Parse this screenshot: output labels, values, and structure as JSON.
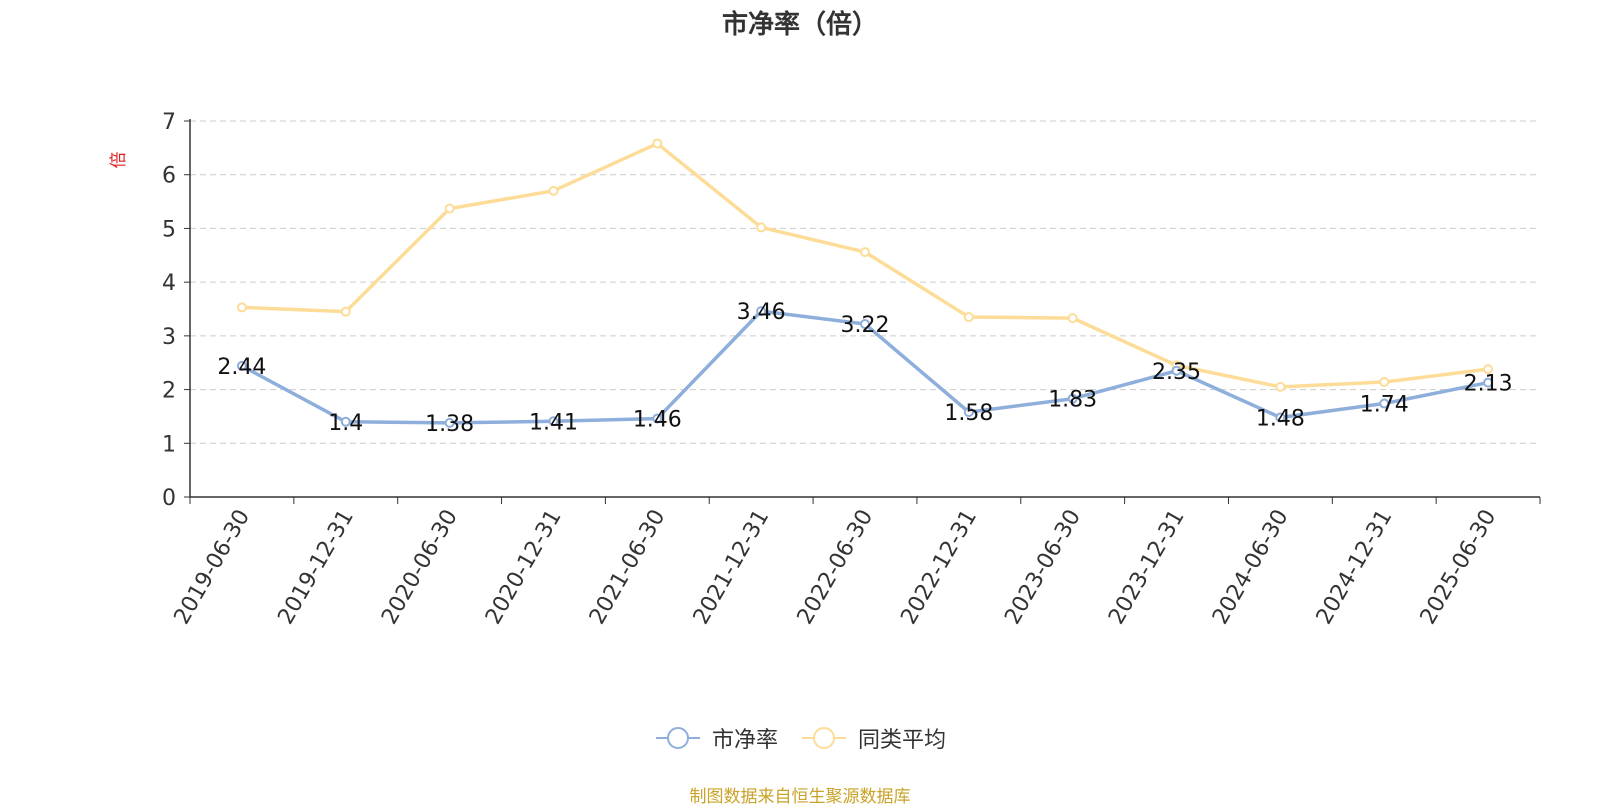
{
  "chart_data": {
    "type": "line",
    "title": "市净率（倍）",
    "ylabel": "倍",
    "ylim": [
      0,
      7
    ],
    "yticks": [
      "0",
      "1",
      "2",
      "3",
      "4",
      "5",
      "6",
      "7"
    ],
    "grid": true,
    "legend_position": "bottom-center",
    "categories": [
      "2019-06-30",
      "2019-12-31",
      "2020-06-30",
      "2020-12-31",
      "2021-06-30",
      "2021-12-31",
      "2022-06-30",
      "2022-12-31",
      "2023-06-30",
      "2023-12-31",
      "2024-06-30",
      "2024-12-31",
      "2025-06-30"
    ],
    "series": [
      {
        "name": "市净率",
        "color": "#8eaedb",
        "values": [
          2.44,
          1.4,
          1.38,
          1.41,
          1.46,
          3.46,
          3.22,
          1.58,
          1.83,
          2.35,
          1.48,
          1.74,
          2.13
        ],
        "labels": [
          "2.44",
          "1.4",
          "1.38",
          "1.41",
          "1.46",
          "3.46",
          "3.22",
          "1.58",
          "1.83",
          "2.35",
          "1.48",
          "1.74",
          "2.13"
        ]
      },
      {
        "name": "同类平均",
        "color": "#fddc98",
        "values": [
          3.53,
          3.45,
          5.37,
          5.7,
          6.58,
          5.02,
          4.56,
          3.35,
          3.33,
          2.45,
          2.05,
          2.14,
          2.38
        ]
      }
    ],
    "source": "制图数据来自恒生聚源数据库"
  }
}
